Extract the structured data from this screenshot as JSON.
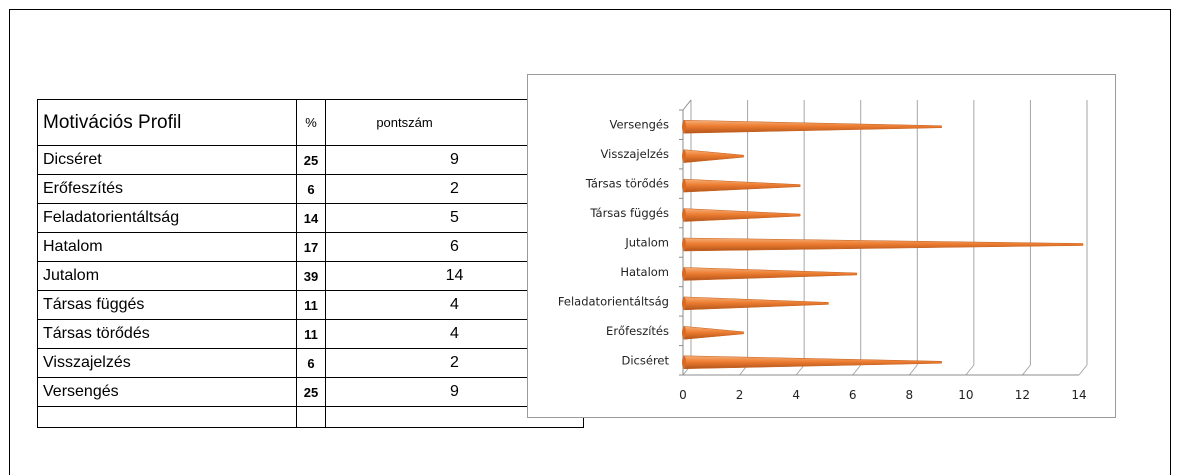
{
  "table": {
    "headers": [
      "Motivációs Profil",
      "%",
      "pontszám"
    ],
    "rows": [
      {
        "name": "Dicséret",
        "percent": "25",
        "score": "9"
      },
      {
        "name": "Erőfeszítés",
        "percent": "6",
        "score": "2"
      },
      {
        "name": "Feladatorientáltság",
        "percent": "14",
        "score": "5"
      },
      {
        "name": "Hatalom",
        "percent": "17",
        "score": "6"
      },
      {
        "name": "Jutalom",
        "percent": "39",
        "score": "14"
      },
      {
        "name": "Társas függés",
        "percent": "11",
        "score": "4"
      },
      {
        "name": "Társas törődés",
        "percent": "11",
        "score": "4"
      },
      {
        "name": "Visszajelzés",
        "percent": "6",
        "score": "2"
      },
      {
        "name": "Versengés",
        "percent": "25",
        "score": "9"
      }
    ]
  },
  "chart_data": {
    "type": "bar",
    "orientation": "horizontal",
    "style": "3d-cone",
    "categories": [
      "Dicséret",
      "Erőfeszítés",
      "Feladatorientáltság",
      "Hatalom",
      "Jutalom",
      "Társas függés",
      "Társas törődés",
      "Visszajelzés",
      "Versengés"
    ],
    "values": [
      9,
      2,
      5,
      6,
      14,
      4,
      4,
      2,
      9
    ],
    "xlim": [
      0,
      14
    ],
    "xticks": [
      "0",
      "2",
      "4",
      "6",
      "8",
      "10",
      "12",
      "14"
    ],
    "grid": true,
    "legend": "none",
    "bar_color": "#ED7D31",
    "title": "",
    "xlabel": "",
    "ylabel": ""
  }
}
